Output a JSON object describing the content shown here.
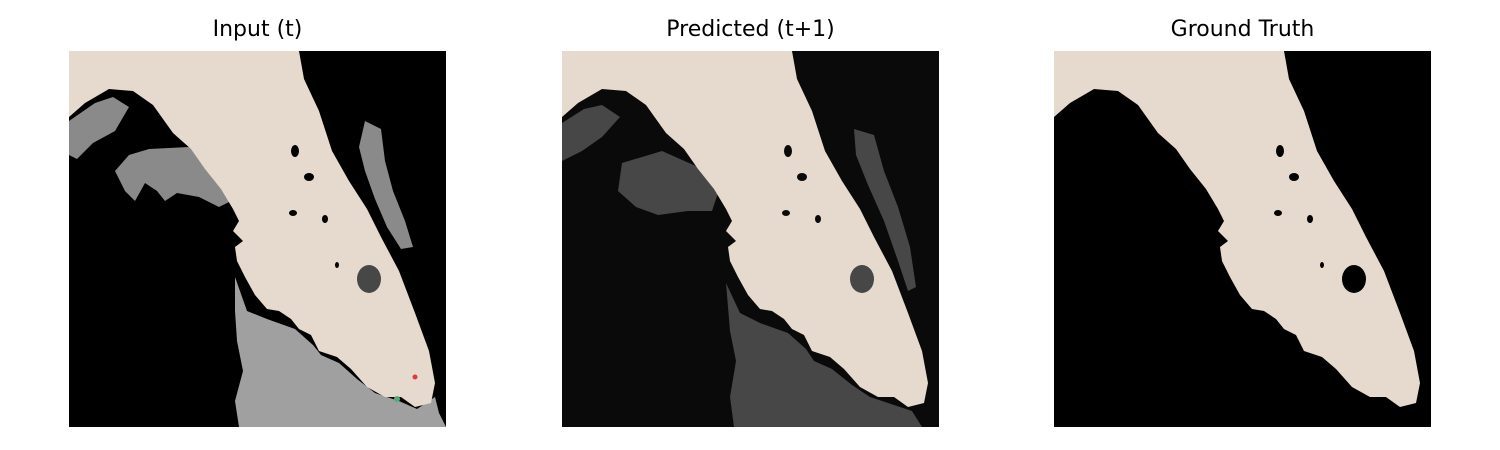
{
  "figure": {
    "panels": [
      {
        "title": "Input (t)",
        "water_color": "#000000",
        "land_color": "#e6dace",
        "inundation_color": "#a0a0a0",
        "marker_colors": [
          "#e03a3a",
          "#4caf7a"
        ]
      },
      {
        "title": "Predicted (t+1)",
        "water_color": "#0a0a0a",
        "land_color": "#e6dace",
        "inundation_color": "#474747"
      },
      {
        "title": "Ground Truth",
        "water_color": "#000000",
        "land_color": "#e6dace"
      }
    ]
  }
}
